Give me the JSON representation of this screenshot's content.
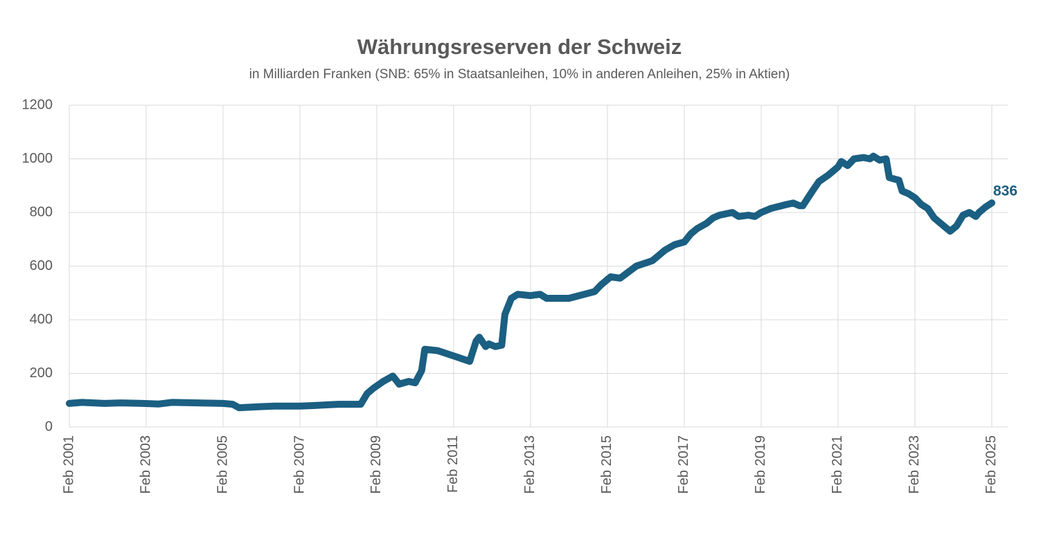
{
  "chart_data": {
    "type": "line",
    "title": "Währungsreserven der Schweiz",
    "subtitle": "in Milliarden Franken (SNB: 65% in Staatsanleihen, 10% in anderen Anleihen, 25% in Aktien)",
    "color": "#1b5f82",
    "grid": true,
    "x": [
      "2001-02",
      "2001-06",
      "2002-01",
      "2002-06",
      "2003-01",
      "2003-06",
      "2003-10",
      "2004-06",
      "2005-02",
      "2005-05",
      "2005-07",
      "2006-02",
      "2006-06",
      "2007-02",
      "2007-06",
      "2008-02",
      "2008-09",
      "2008-11",
      "2009-01",
      "2009-04",
      "2009-07",
      "2009-09",
      "2009-12",
      "2010-02",
      "2010-04",
      "2010-05",
      "2010-09",
      "2011-02",
      "2011-07",
      "2011-09",
      "2011-10",
      "2011-12",
      "2012-01",
      "2012-03",
      "2012-05",
      "2012-06",
      "2012-08",
      "2012-10",
      "2013-02",
      "2013-05",
      "2013-07",
      "2014-02",
      "2014-10",
      "2014-12",
      "2015-03",
      "2015-06",
      "2015-11",
      "2016-04",
      "2016-08",
      "2016-11",
      "2017-02",
      "2017-04",
      "2017-06",
      "2017-09",
      "2017-11",
      "2018-01",
      "2018-05",
      "2018-07",
      "2018-10",
      "2018-12",
      "2019-02",
      "2019-05",
      "2019-10",
      "2019-12",
      "2020-02",
      "2020-03",
      "2020-06",
      "2020-08",
      "2020-11",
      "2021-02",
      "2021-03",
      "2021-05",
      "2021-07",
      "2021-10",
      "2021-12",
      "2022-01",
      "2022-03",
      "2022-05",
      "2022-06",
      "2022-09",
      "2022-10",
      "2022-12",
      "2023-02",
      "2023-04",
      "2023-06",
      "2023-08",
      "2023-12",
      "2024-01",
      "2024-03",
      "2024-05",
      "2024-07",
      "2024-09",
      "2024-10",
      "2024-12",
      "2025-02"
    ],
    "values": [
      88,
      92,
      88,
      90,
      88,
      86,
      92,
      90,
      88,
      85,
      72,
      76,
      78,
      78,
      80,
      85,
      85,
      125,
      145,
      170,
      190,
      160,
      170,
      165,
      210,
      290,
      285,
      265,
      245,
      320,
      335,
      300,
      310,
      300,
      305,
      420,
      480,
      495,
      490,
      495,
      480,
      480,
      505,
      530,
      560,
      555,
      600,
      620,
      660,
      680,
      690,
      720,
      740,
      760,
      780,
      790,
      800,
      785,
      790,
      785,
      800,
      815,
      830,
      835,
      825,
      825,
      880,
      915,
      940,
      970,
      990,
      975,
      1000,
      1005,
      1000,
      1010,
      995,
      1000,
      930,
      920,
      880,
      870,
      855,
      830,
      815,
      780,
      740,
      730,
      750,
      790,
      800,
      785,
      800,
      820,
      836
    ],
    "xlim": [
      "2001-02",
      "2025-07"
    ],
    "xticks": [
      {
        "value": "2001-02",
        "label": "Feb 2001"
      },
      {
        "value": "2003-02",
        "label": "Feb 2003"
      },
      {
        "value": "2005-02",
        "label": "Feb 2005"
      },
      {
        "value": "2007-02",
        "label": "Feb 2007"
      },
      {
        "value": "2009-02",
        "label": "Feb 2009"
      },
      {
        "value": "2011-02",
        "label": "Feb 2011"
      },
      {
        "value": "2013-02",
        "label": "Feb 2013"
      },
      {
        "value": "2015-02",
        "label": "Feb 2015"
      },
      {
        "value": "2017-02",
        "label": "Feb 2017"
      },
      {
        "value": "2019-02",
        "label": "Feb 2019"
      },
      {
        "value": "2021-02",
        "label": "Feb 2021"
      },
      {
        "value": "2023-02",
        "label": "Feb 2023"
      },
      {
        "value": "2025-02",
        "label": "Feb 2025"
      }
    ],
    "ylim": [
      0,
      1200
    ],
    "yticks": [
      0,
      200,
      400,
      600,
      800,
      1000,
      1200
    ]
  }
}
